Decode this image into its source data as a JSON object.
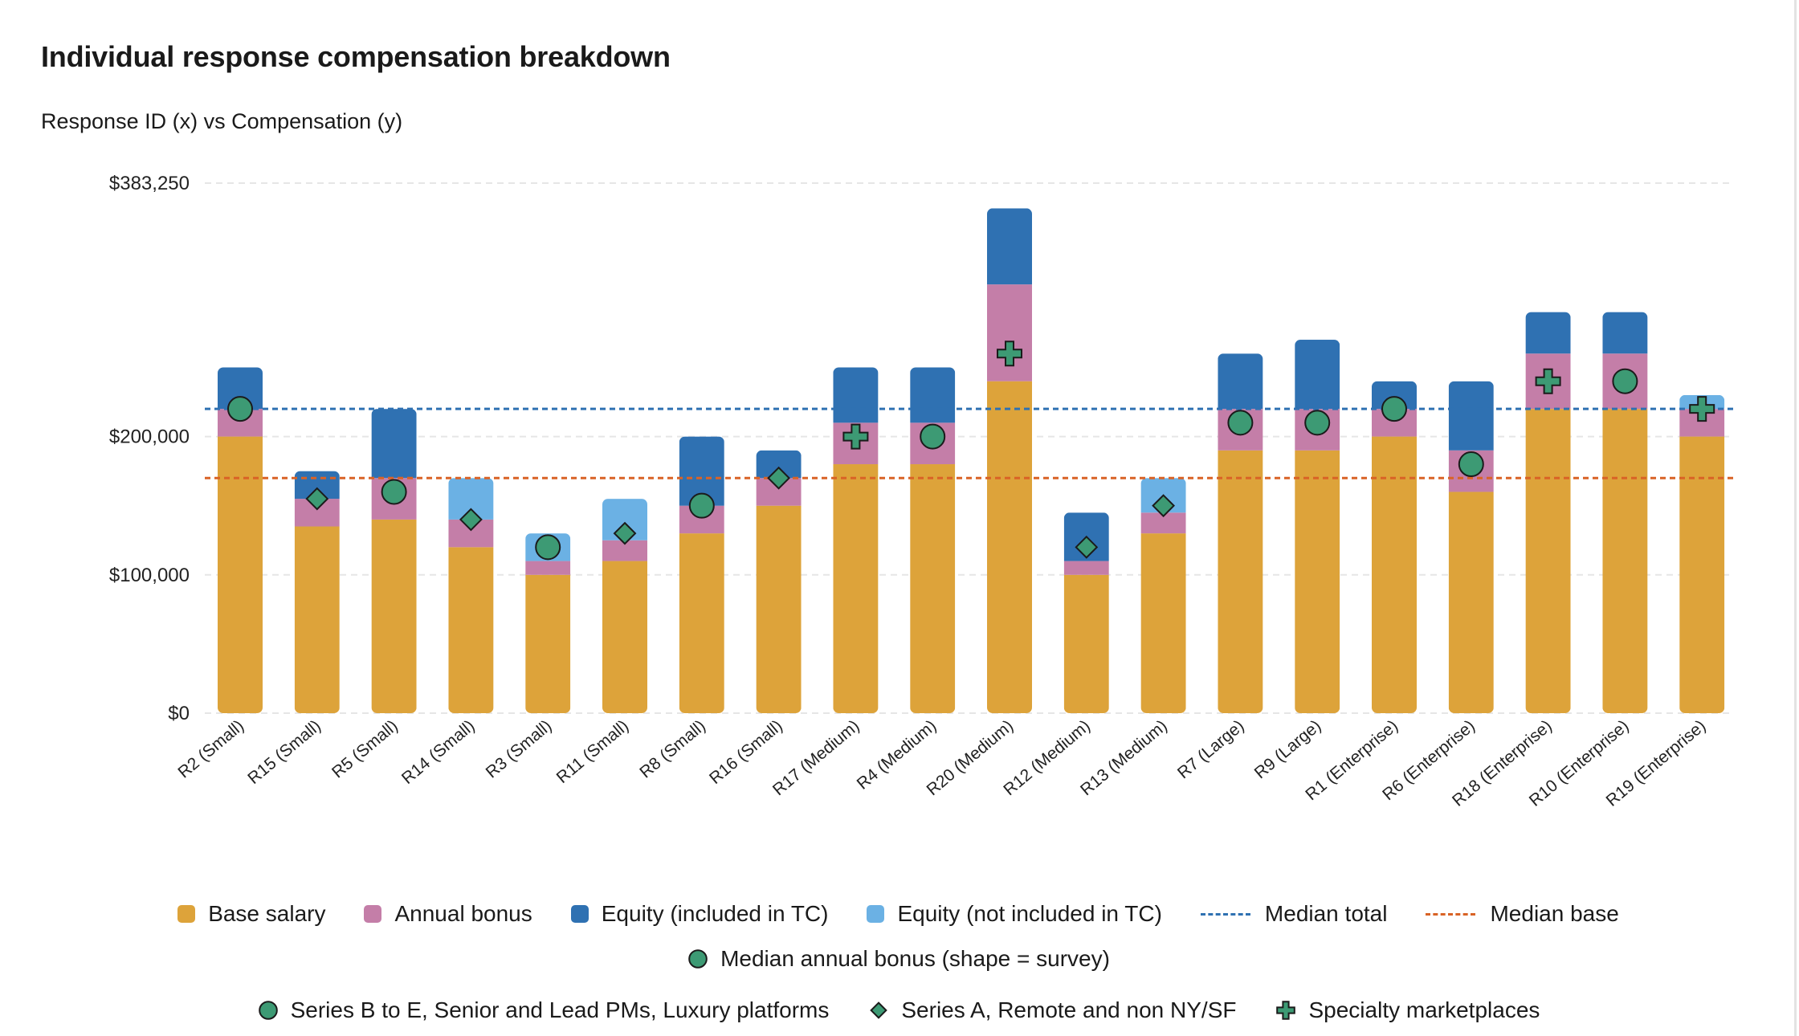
{
  "title": "Individual response compensation breakdown",
  "subtitle": "Response ID (x) vs Compensation (y)",
  "colors": {
    "base": "#DDA33A",
    "bonus": "#C47EA8",
    "equity_tc": "#2F71B2",
    "equity_not_tc": "#6BB1E4",
    "median_total": "#2F71B2",
    "median_base": "#D96326",
    "marker": "#3D9A74"
  },
  "legend": {
    "row1": [
      {
        "label": "Base salary",
        "kind": "swatch",
        "color": "#DDA33A"
      },
      {
        "label": "Annual bonus",
        "kind": "swatch",
        "color": "#C47EA8"
      },
      {
        "label": "Equity (included in TC)",
        "kind": "swatch",
        "color": "#2F71B2"
      },
      {
        "label": "Equity (not included in TC)",
        "kind": "swatch",
        "color": "#6BB1E4"
      },
      {
        "label": "Median total",
        "kind": "line",
        "color": "#2F71B2"
      },
      {
        "label": "Median base",
        "kind": "line",
        "color": "#D96326"
      }
    ],
    "row2": [
      {
        "label": "Median annual bonus (shape = survey)",
        "kind": "circle"
      }
    ],
    "row3": [
      {
        "label": "Series B to E, Senior and Lead PMs, Luxury platforms",
        "kind": "circle"
      },
      {
        "label": "Series A, Remote and non NY/SF",
        "kind": "diamond"
      },
      {
        "label": "Specialty marketplaces",
        "kind": "plus"
      }
    ]
  },
  "chart_data": {
    "type": "bar",
    "stacked": true,
    "title": "Individual response compensation breakdown",
    "subtitle": "Response ID (x) vs Compensation (y)",
    "xlabel": "",
    "ylabel": "",
    "ylim": [
      0,
      383250
    ],
    "y_ticks": [
      {
        "value": 0,
        "label": "$0"
      },
      {
        "value": 100000,
        "label": "$100,000"
      },
      {
        "value": 200000,
        "label": "$200,000"
      },
      {
        "value": 383250,
        "label": "$383,250"
      }
    ],
    "grid": true,
    "legend_position": "bottom",
    "categories": [
      "R2 (Small)",
      "R15 (Small)",
      "R5 (Small)",
      "R14 (Small)",
      "R3 (Small)",
      "R11 (Small)",
      "R8 (Small)",
      "R16 (Small)",
      "R17 (Medium)",
      "R4 (Medium)",
      "R20 (Medium)",
      "R12 (Medium)",
      "R13 (Medium)",
      "R7 (Large)",
      "R9 (Large)",
      "R1 (Enterprise)",
      "R6 (Enterprise)",
      "R18 (Enterprise)",
      "R10 (Enterprise)",
      "R19 (Enterprise)"
    ],
    "series": [
      {
        "name": "Base salary",
        "key": "base",
        "values": [
          200000,
          135000,
          140000,
          120000,
          100000,
          110000,
          130000,
          150000,
          180000,
          180000,
          240000,
          100000,
          130000,
          190000,
          190000,
          200000,
          160000,
          220000,
          220000,
          200000
        ]
      },
      {
        "name": "Annual bonus",
        "key": "bonus",
        "values": [
          20000,
          20000,
          30000,
          20000,
          10000,
          15000,
          20000,
          20000,
          30000,
          30000,
          70000,
          10000,
          15000,
          30000,
          30000,
          20000,
          30000,
          40000,
          40000,
          20000
        ]
      },
      {
        "name": "Equity (included in TC)",
        "key": "equity_tc",
        "values": [
          30000,
          20000,
          50000,
          0,
          0,
          0,
          50000,
          20000,
          40000,
          40000,
          55000,
          35000,
          0,
          40000,
          50000,
          20000,
          50000,
          30000,
          30000,
          0
        ]
      },
      {
        "name": "Equity (not included in TC)",
        "key": "equity_not_tc",
        "values": [
          0,
          0,
          0,
          30000,
          20000,
          30000,
          0,
          0,
          0,
          0,
          0,
          0,
          25000,
          0,
          0,
          0,
          0,
          0,
          0,
          10000
        ]
      }
    ],
    "reference_lines": [
      {
        "name": "Median total",
        "value": 220000
      },
      {
        "name": "Median base",
        "value": 170000
      }
    ],
    "median_annual_bonus_markers": {
      "name": "Median annual bonus (shape = survey)",
      "values": [
        220000,
        155000,
        160000,
        140000,
        120000,
        130000,
        150000,
        170000,
        200000,
        200000,
        260000,
        120000,
        150000,
        210000,
        210000,
        220000,
        180000,
        240000,
        240000,
        220000
      ],
      "shapes": [
        "circle",
        "diamond",
        "circle",
        "diamond",
        "circle",
        "diamond",
        "circle",
        "diamond",
        "plus",
        "circle",
        "plus",
        "diamond",
        "diamond",
        "circle",
        "circle",
        "circle",
        "circle",
        "plus",
        "circle",
        "plus"
      ]
    }
  }
}
